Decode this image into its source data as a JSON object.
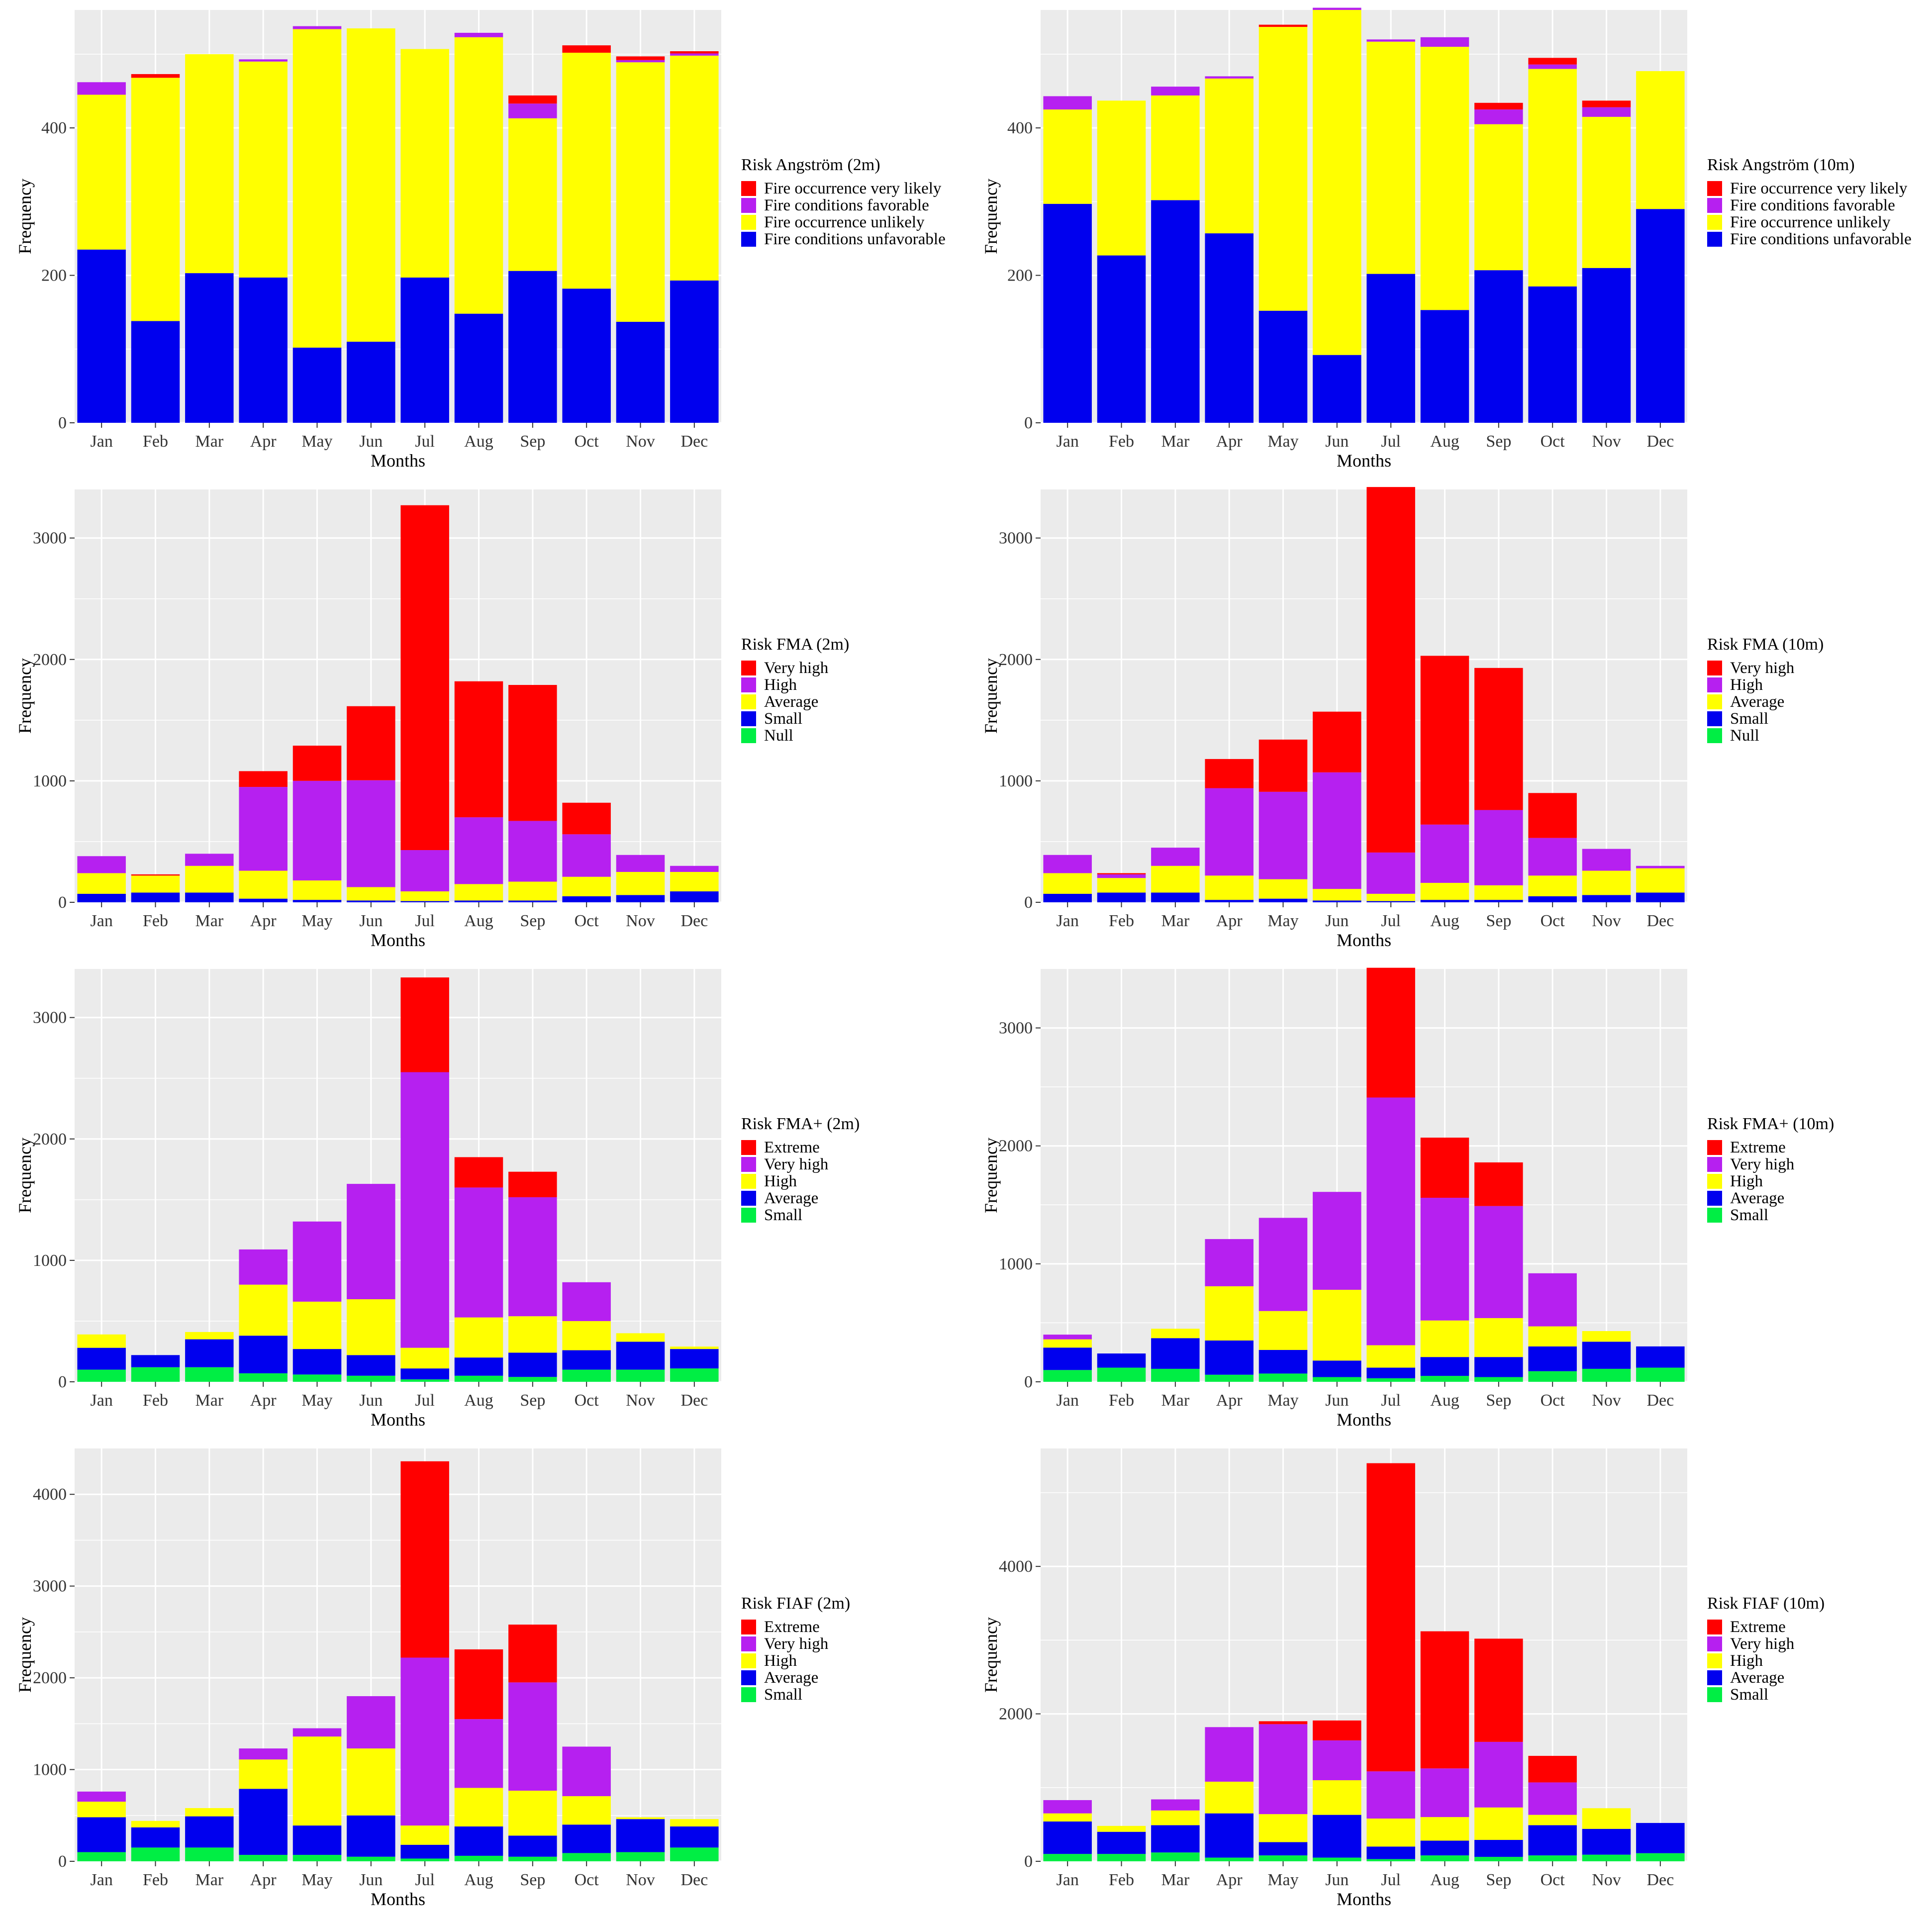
{
  "figure": {
    "description_free": true
  },
  "colors": {
    "red": "#ff0000",
    "purple": "#b620f0",
    "yellow": "#ffff00",
    "blue": "#0000ee",
    "green": "#00ee44",
    "panel": "#ebebeb",
    "gridline": "#ffffff"
  },
  "chart_data": [
    {
      "type": "bar",
      "stacked": true,
      "categories": [
        "Jan",
        "Feb",
        "Mar",
        "Apr",
        "May",
        "Jun",
        "Jul",
        "Aug",
        "Sep",
        "Oct",
        "Nov",
        "Dec"
      ],
      "xlabel": "Months",
      "ylabel": "Frequency",
      "ylim": [
        0,
        560
      ],
      "yticks": [
        0,
        200,
        400
      ],
      "legend_title": "Risk Angström (2m)",
      "series": [
        {
          "name": "Fire conditions unfavorable",
          "color": "#0000ee",
          "values": [
            235,
            138,
            203,
            197,
            102,
            110,
            197,
            148,
            206,
            182,
            137,
            193
          ]
        },
        {
          "name": "Fire occurrence unlikely",
          "color": "#ffff00",
          "values": [
            210,
            330,
            297,
            293,
            432,
            425,
            310,
            375,
            207,
            320,
            352,
            305
          ]
        },
        {
          "name": "Fire conditions favorable",
          "color": "#b620f0",
          "values": [
            17,
            0,
            0,
            3,
            4,
            0,
            0,
            6,
            20,
            0,
            3,
            3
          ]
        },
        {
          "name": "Fire occurrence very likely",
          "color": "#ff0000",
          "values": [
            0,
            5,
            0,
            0,
            0,
            0,
            0,
            0,
            11,
            10,
            5,
            3
          ]
        }
      ]
    },
    {
      "type": "bar",
      "stacked": true,
      "categories": [
        "Jan",
        "Feb",
        "Mar",
        "Apr",
        "May",
        "Jun",
        "Jul",
        "Aug",
        "Sep",
        "Oct",
        "Nov",
        "Dec"
      ],
      "xlabel": "Months",
      "ylabel": "Frequency",
      "ylim": [
        0,
        560
      ],
      "yticks": [
        0,
        200,
        400
      ],
      "legend_title": "Risk Angström (10m)",
      "series": [
        {
          "name": "Fire conditions unfavorable",
          "color": "#0000ee",
          "values": [
            297,
            227,
            302,
            257,
            152,
            92,
            202,
            153,
            207,
            185,
            210,
            290
          ]
        },
        {
          "name": "Fire occurrence unlikely",
          "color": "#ffff00",
          "values": [
            128,
            210,
            142,
            210,
            385,
            468,
            315,
            357,
            198,
            295,
            205,
            187
          ]
        },
        {
          "name": "Fire conditions favorable",
          "color": "#b620f0",
          "values": [
            18,
            0,
            12,
            3,
            0,
            3,
            3,
            13,
            20,
            6,
            13,
            0
          ]
        },
        {
          "name": "Fire occurrence very likely",
          "color": "#ff0000",
          "values": [
            0,
            0,
            0,
            0,
            3,
            0,
            0,
            0,
            9,
            9,
            9,
            0
          ]
        }
      ]
    },
    {
      "type": "bar",
      "stacked": true,
      "categories": [
        "Jan",
        "Feb",
        "Mar",
        "Apr",
        "May",
        "Jun",
        "Jul",
        "Aug",
        "Sep",
        "Oct",
        "Nov",
        "Dec"
      ],
      "xlabel": "Months",
      "ylabel": "Frequency",
      "ylim": [
        0,
        3400
      ],
      "yticks": [
        0,
        1000,
        2000,
        3000
      ],
      "legend_title": "Risk FMA (2m)",
      "series": [
        {
          "name": "Null",
          "color": "#00ee44",
          "values": [
            0,
            0,
            0,
            0,
            0,
            0,
            0,
            0,
            0,
            0,
            0,
            0
          ]
        },
        {
          "name": "Small",
          "color": "#0000ee",
          "values": [
            70,
            80,
            80,
            30,
            20,
            15,
            10,
            15,
            15,
            50,
            60,
            90
          ]
        },
        {
          "name": "Average",
          "color": "#ffff00",
          "values": [
            170,
            140,
            220,
            230,
            160,
            110,
            80,
            135,
            155,
            160,
            190,
            160
          ]
        },
        {
          "name": "High",
          "color": "#b620f0",
          "values": [
            140,
            0,
            100,
            690,
            820,
            880,
            340,
            550,
            500,
            350,
            140,
            50
          ]
        },
        {
          "name": "Very high",
          "color": "#ff0000",
          "values": [
            0,
            10,
            0,
            130,
            290,
            610,
            2840,
            1120,
            1120,
            260,
            0,
            0
          ]
        }
      ]
    },
    {
      "type": "bar",
      "stacked": true,
      "categories": [
        "Jan",
        "Feb",
        "Mar",
        "Apr",
        "May",
        "Jun",
        "Jul",
        "Aug",
        "Sep",
        "Oct",
        "Nov",
        "Dec"
      ],
      "xlabel": "Months",
      "ylabel": "Frequency",
      "ylim": [
        0,
        3400
      ],
      "yticks": [
        0,
        1000,
        2000,
        3000
      ],
      "legend_title": "Risk FMA (10m)",
      "series": [
        {
          "name": "Null",
          "color": "#00ee44",
          "values": [
            0,
            0,
            0,
            0,
            0,
            0,
            0,
            0,
            0,
            0,
            0,
            0
          ]
        },
        {
          "name": "Small",
          "color": "#0000ee",
          "values": [
            70,
            80,
            80,
            20,
            30,
            15,
            10,
            20,
            20,
            50,
            60,
            80
          ]
        },
        {
          "name": "Average",
          "color": "#ffff00",
          "values": [
            170,
            120,
            220,
            200,
            160,
            95,
            60,
            140,
            120,
            170,
            200,
            200
          ]
        },
        {
          "name": "High",
          "color": "#b620f0",
          "values": [
            150,
            30,
            150,
            720,
            720,
            960,
            340,
            480,
            620,
            310,
            180,
            20
          ]
        },
        {
          "name": "Very high",
          "color": "#ff0000",
          "values": [
            0,
            10,
            0,
            240,
            430,
            500,
            3010,
            1390,
            1170,
            370,
            0,
            0
          ]
        }
      ]
    },
    {
      "type": "bar",
      "stacked": true,
      "categories": [
        "Jan",
        "Feb",
        "Mar",
        "Apr",
        "May",
        "Jun",
        "Jul",
        "Aug",
        "Sep",
        "Oct",
        "Nov",
        "Dec"
      ],
      "xlabel": "Months",
      "ylabel": "Frequency",
      "ylim": [
        0,
        3400
      ],
      "yticks": [
        0,
        1000,
        2000,
        3000
      ],
      "legend_title": "Risk FMA+ (2m)",
      "series": [
        {
          "name": "Small",
          "color": "#00ee44",
          "values": [
            100,
            120,
            120,
            70,
            60,
            50,
            20,
            50,
            40,
            100,
            100,
            110
          ]
        },
        {
          "name": "Average",
          "color": "#0000ee",
          "values": [
            180,
            100,
            230,
            310,
            210,
            170,
            90,
            150,
            200,
            160,
            230,
            160
          ]
        },
        {
          "name": "High",
          "color": "#ffff00",
          "values": [
            110,
            0,
            60,
            420,
            390,
            460,
            170,
            330,
            300,
            240,
            70,
            20
          ]
        },
        {
          "name": "Very high",
          "color": "#b620f0",
          "values": [
            0,
            0,
            0,
            290,
            660,
            950,
            2270,
            1070,
            980,
            320,
            0,
            0
          ]
        },
        {
          "name": "Extreme",
          "color": "#ff0000",
          "values": [
            0,
            0,
            0,
            0,
            0,
            0,
            780,
            250,
            210,
            0,
            0,
            0
          ]
        }
      ]
    },
    {
      "type": "bar",
      "stacked": true,
      "categories": [
        "Jan",
        "Feb",
        "Mar",
        "Apr",
        "May",
        "Jun",
        "Jul",
        "Aug",
        "Sep",
        "Oct",
        "Nov",
        "Dec"
      ],
      "xlabel": "Months",
      "ylabel": "Frequency",
      "ylim": [
        0,
        3500
      ],
      "yticks": [
        0,
        1000,
        2000,
        3000
      ],
      "legend_title": "Risk FMA+ (10m)",
      "series": [
        {
          "name": "Small",
          "color": "#00ee44",
          "values": [
            100,
            120,
            110,
            60,
            70,
            40,
            30,
            50,
            40,
            90,
            110,
            120
          ]
        },
        {
          "name": "Average",
          "color": "#0000ee",
          "values": [
            190,
            120,
            260,
            290,
            200,
            140,
            90,
            160,
            170,
            210,
            230,
            180
          ]
        },
        {
          "name": "High",
          "color": "#ffff00",
          "values": [
            70,
            0,
            80,
            460,
            330,
            600,
            190,
            310,
            330,
            170,
            90,
            0
          ]
        },
        {
          "name": "Very high",
          "color": "#b620f0",
          "values": [
            40,
            0,
            0,
            400,
            790,
            830,
            2100,
            1040,
            950,
            450,
            0,
            0
          ]
        },
        {
          "name": "Extreme",
          "color": "#ff0000",
          "values": [
            0,
            0,
            0,
            0,
            0,
            0,
            1100,
            510,
            370,
            0,
            0,
            0
          ]
        }
      ]
    },
    {
      "type": "bar",
      "stacked": true,
      "categories": [
        "Jan",
        "Feb",
        "Mar",
        "Apr",
        "May",
        "Jun",
        "Jul",
        "Aug",
        "Sep",
        "Oct",
        "Nov",
        "Dec"
      ],
      "xlabel": "Months",
      "ylabel": "Frequency",
      "ylim": [
        0,
        4500
      ],
      "yticks": [
        0,
        1000,
        2000,
        3000,
        4000
      ],
      "legend_title": "Risk FIAF (2m)",
      "series": [
        {
          "name": "Small",
          "color": "#00ee44",
          "values": [
            100,
            150,
            150,
            70,
            70,
            50,
            30,
            60,
            50,
            90,
            100,
            150
          ]
        },
        {
          "name": "Average",
          "color": "#0000ee",
          "values": [
            380,
            220,
            340,
            720,
            320,
            450,
            150,
            320,
            230,
            310,
            360,
            230
          ]
        },
        {
          "name": "High",
          "color": "#ffff00",
          "values": [
            170,
            70,
            90,
            320,
            970,
            730,
            210,
            420,
            490,
            310,
            20,
            80
          ]
        },
        {
          "name": "Very high",
          "color": "#b620f0",
          "values": [
            110,
            0,
            0,
            120,
            90,
            570,
            1830,
            750,
            1180,
            540,
            0,
            0
          ]
        },
        {
          "name": "Extreme",
          "color": "#ff0000",
          "values": [
            0,
            0,
            0,
            0,
            0,
            0,
            2140,
            760,
            630,
            0,
            0,
            0
          ]
        }
      ]
    },
    {
      "type": "bar",
      "stacked": true,
      "categories": [
        "Jan",
        "Feb",
        "Mar",
        "Apr",
        "May",
        "Jun",
        "Jul",
        "Aug",
        "Sep",
        "Oct",
        "Nov",
        "Dec"
      ],
      "xlabel": "Months",
      "ylabel": "Frequency",
      "ylim": [
        0,
        5600
      ],
      "yticks": [
        0,
        2000,
        4000
      ],
      "legend_title": "Risk FIAF (10m)",
      "series": [
        {
          "name": "Small",
          "color": "#00ee44",
          "values": [
            100,
            100,
            120,
            50,
            80,
            50,
            30,
            80,
            60,
            80,
            90,
            110
          ]
        },
        {
          "name": "Average",
          "color": "#0000ee",
          "values": [
            440,
            300,
            370,
            600,
            180,
            580,
            170,
            200,
            230,
            410,
            350,
            410
          ]
        },
        {
          "name": "High",
          "color": "#ffff00",
          "values": [
            110,
            80,
            200,
            430,
            380,
            470,
            380,
            320,
            440,
            140,
            280,
            0
          ]
        },
        {
          "name": "Very high",
          "color": "#b620f0",
          "values": [
            180,
            0,
            150,
            740,
            1220,
            540,
            640,
            660,
            890,
            440,
            0,
            0
          ]
        },
        {
          "name": "Extreme",
          "color": "#ff0000",
          "values": [
            0,
            0,
            0,
            0,
            40,
            270,
            4180,
            1860,
            1400,
            360,
            0,
            0
          ]
        }
      ]
    }
  ]
}
